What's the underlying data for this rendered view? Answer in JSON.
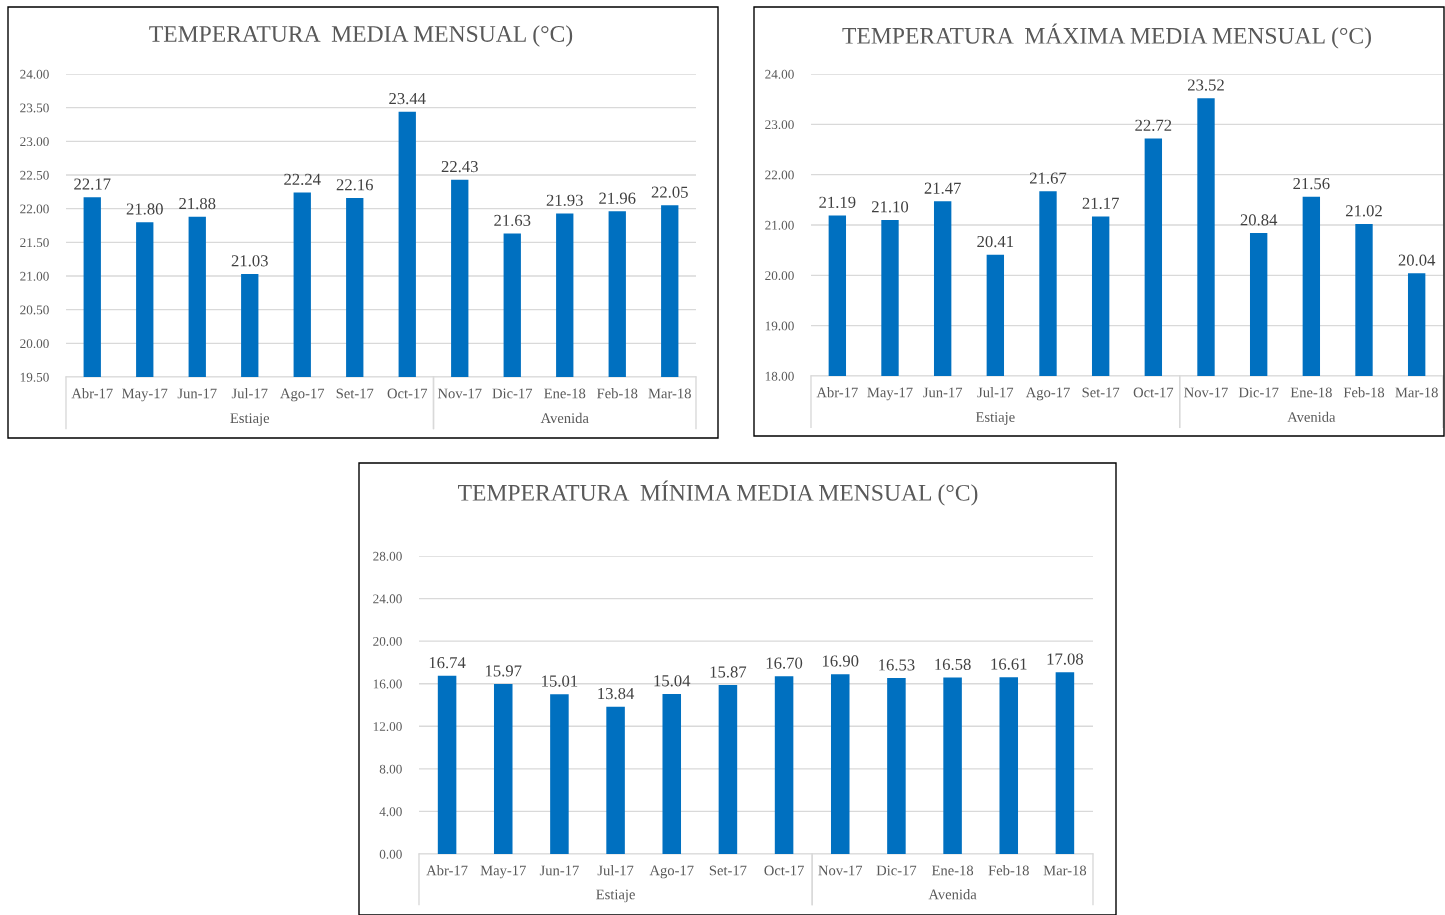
{
  "chart_data": [
    {
      "type": "bar",
      "title": "TEMPERATURA  MEDIA MENSUAL (°C)",
      "categories": [
        "Abr-17",
        "May-17",
        "Jun-17",
        "Jul-17",
        "Ago-17",
        "Set-17",
        "Oct-17",
        "Nov-17",
        "Dic-17",
        "Ene-18",
        "Feb-18",
        "Mar-18"
      ],
      "values": [
        22.17,
        21.8,
        21.88,
        21.03,
        22.24,
        22.16,
        23.44,
        22.43,
        21.63,
        21.93,
        21.96,
        22.05
      ],
      "value_labels": [
        "22.17",
        "21.80",
        "21.88",
        "21.03",
        "22.24",
        "22.16",
        "23.44",
        "22.43",
        "21.63",
        "21.93",
        "21.96",
        "22.05"
      ],
      "color": "#0070c0",
      "ylim": [
        19.5,
        24.0
      ],
      "yticks": [
        {
          "value": 19.5,
          "label": "19.50"
        },
        {
          "value": 20,
          "label": "20.00"
        },
        {
          "value": 20.5,
          "label": "20.50"
        },
        {
          "value": 21,
          "label": "21.00"
        },
        {
          "value": 21.5,
          "label": "21.50"
        },
        {
          "value": 22,
          "label": "22.00"
        },
        {
          "value": 22.5,
          "label": "22.50"
        },
        {
          "value": 23,
          "label": "23.00"
        },
        {
          "value": 23.5,
          "label": "23.50"
        },
        {
          "value": 24,
          "label": "24.00"
        }
      ],
      "grid": "y",
      "legend": false,
      "annotations": [
        "Estiaje",
        "Avenida"
      ]
    },
    {
      "type": "bar",
      "title": "TEMPERATURA  MÁXIMA MEDIA MENSUAL (°C)",
      "categories": [
        "Abr-17",
        "May-17",
        "Jun-17",
        "Jul-17",
        "Ago-17",
        "Set-17",
        "Oct-17",
        "Nov-17",
        "Dic-17",
        "Ene-18",
        "Feb-18",
        "Mar-18"
      ],
      "values": [
        21.19,
        21.1,
        21.47,
        20.41,
        21.67,
        21.17,
        22.72,
        23.52,
        20.84,
        21.56,
        21.02,
        20.04
      ],
      "value_labels": [
        "21.19",
        "21.10",
        "21.47",
        "20.41",
        "21.67",
        "21.17",
        "22.72",
        "23.52",
        "20.84",
        "21.56",
        "21.02",
        "20.04"
      ],
      "color": "#0070c0",
      "ylim": [
        18.0,
        24.0
      ],
      "yticks": [
        {
          "value": 18,
          "label": "18.00"
        },
        {
          "value": 19,
          "label": "19.00"
        },
        {
          "value": 20,
          "label": "20.00"
        },
        {
          "value": 21,
          "label": "21.00"
        },
        {
          "value": 22,
          "label": "22.00"
        },
        {
          "value": 23,
          "label": "23.00"
        },
        {
          "value": 24,
          "label": "24.00"
        }
      ],
      "grid": "y",
      "legend": false,
      "annotations": [
        "Estiaje",
        "Avenida"
      ]
    },
    {
      "type": "bar",
      "title": "TEMPERATURA  MÍNIMA MEDIA MENSUAL (°C)",
      "categories": [
        "Abr-17",
        "May-17",
        "Jun-17",
        "Jul-17",
        "Ago-17",
        "Set-17",
        "Oct-17",
        "Nov-17",
        "Dic-17",
        "Ene-18",
        "Feb-18",
        "Mar-18"
      ],
      "values": [
        16.74,
        15.97,
        15.01,
        13.84,
        15.04,
        15.87,
        16.7,
        16.9,
        16.53,
        16.58,
        16.61,
        17.08
      ],
      "value_labels": [
        "16.74",
        "15.97",
        "15.01",
        "13.84",
        "15.04",
        "15.87",
        "16.70",
        "16.90",
        "16.53",
        "16.58",
        "16.61",
        "17.08"
      ],
      "color": "#0070c0",
      "ylim": [
        0,
        28
      ],
      "yticks": [
        {
          "value": 0,
          "label": "0.00"
        },
        {
          "value": 4,
          "label": "4.00"
        },
        {
          "value": 8,
          "label": "8.00"
        },
        {
          "value": 12,
          "label": "12.00"
        },
        {
          "value": 16,
          "label": "16.00"
        },
        {
          "value": 20,
          "label": "20.00"
        },
        {
          "value": 24,
          "label": "24.00"
        },
        {
          "value": 28,
          "label": "28.00"
        }
      ],
      "grid": "y",
      "legend": false,
      "annotations": [
        "Estiaje",
        "Avenida"
      ]
    }
  ]
}
